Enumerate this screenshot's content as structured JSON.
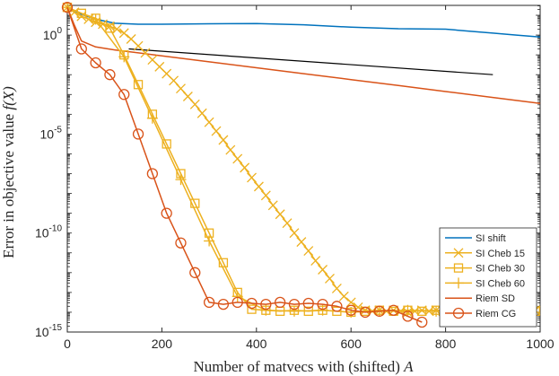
{
  "chart_data": {
    "type": "line",
    "title": "",
    "xlabel": "Number of matvecs with (shifted) A",
    "xlabel_parts": {
      "text": "Number of matvecs with (shifted) ",
      "math": "A"
    },
    "ylabel": "Error in objective value f(X)",
    "ylabel_parts": {
      "text": "Error in objective value ",
      "math": "f(X)"
    },
    "xlim": [
      0,
      1000
    ],
    "ylim_log10": [
      -15,
      1.5
    ],
    "yscale": "log",
    "x_ticks": [
      0,
      200,
      400,
      600,
      800,
      1000
    ],
    "x_tick_labels": [
      "0",
      "200",
      "400",
      "600",
      "800",
      "1000"
    ],
    "y_ticks_log10": [
      0,
      -5,
      -10,
      -15
    ],
    "y_tick_labels": [
      {
        "base": "10",
        "exp": "0"
      },
      {
        "base": "10",
        "exp": "-5"
      },
      {
        "base": "10",
        "exp": "-10"
      },
      {
        "base": "10",
        "exp": "-15"
      }
    ],
    "legend_position": "bottom-right",
    "series": [
      {
        "name": "SI shift",
        "color": "#0072BD",
        "marker": "none",
        "x": [
          0,
          30,
          60,
          100,
          150,
          200,
          300,
          400,
          500,
          600,
          700,
          800,
          850,
          900,
          950,
          1000
        ],
        "log10_y": [
          1.4,
          1.05,
          0.8,
          0.6,
          0.55,
          0.55,
          0.57,
          0.58,
          0.52,
          0.4,
          0.32,
          0.3,
          0.2,
          0.1,
          0.0,
          -0.1
        ]
      },
      {
        "name": "SI Cheb 15",
        "color": "#EDB120",
        "marker": "x",
        "x": [
          0,
          15,
          30,
          45,
          60,
          75,
          90,
          105,
          120,
          135,
          150,
          165,
          180,
          195,
          210,
          225,
          240,
          255,
          270,
          285,
          300,
          315,
          330,
          345,
          360,
          375,
          390,
          405,
          420,
          435,
          450,
          465,
          480,
          495,
          510,
          525,
          540,
          555,
          570,
          585,
          600,
          615,
          630,
          645,
          660,
          675,
          690,
          705,
          720,
          735,
          750,
          765,
          780,
          795,
          810,
          825,
          840,
          855,
          870,
          885,
          900,
          915,
          930,
          945,
          960,
          975,
          990
        ],
        "log10_y": [
          1.4,
          1.15,
          0.95,
          0.8,
          0.65,
          0.55,
          0.45,
          0.3,
          0.1,
          -0.2,
          -0.55,
          -0.9,
          -1.25,
          -1.6,
          -1.95,
          -2.3,
          -2.7,
          -3.1,
          -3.5,
          -3.95,
          -4.4,
          -4.85,
          -5.3,
          -5.8,
          -6.25,
          -6.7,
          -7.2,
          -7.65,
          -8.1,
          -8.6,
          -9.05,
          -9.5,
          -10.0,
          -10.45,
          -10.9,
          -11.4,
          -11.85,
          -12.3,
          -12.8,
          -13.2,
          -13.5,
          -13.75,
          -13.9,
          -13.95,
          -13.9,
          -13.95,
          -13.9,
          -13.95,
          -14.0,
          -13.95,
          -13.9,
          -13.95,
          -13.9,
          -13.95,
          -13.9,
          -13.95,
          -13.9,
          -13.95,
          -13.9,
          -13.95,
          -13.9,
          -13.95,
          -13.9,
          -13.95,
          -13.9,
          -13.95,
          -13.9
        ]
      },
      {
        "name": "SI Cheb 30",
        "color": "#EDB120",
        "marker": "square",
        "x": [
          0,
          30,
          60,
          90,
          120,
          150,
          180,
          210,
          240,
          270,
          300,
          330,
          360,
          390,
          420,
          450,
          480,
          510,
          540,
          570,
          600,
          630,
          660,
          690,
          720,
          750,
          780,
          810,
          840,
          870,
          900,
          930,
          960,
          990
        ],
        "log10_y": [
          1.4,
          1.1,
          0.85,
          0.35,
          -1.0,
          -2.5,
          -4.0,
          -5.5,
          -7.0,
          -8.5,
          -10.0,
          -11.5,
          -13.0,
          -13.85,
          -13.9,
          -13.95,
          -13.9,
          -13.95,
          -13.9,
          -13.95,
          -14.0,
          -13.95,
          -13.9,
          -13.95,
          -13.9,
          -13.95,
          -13.9,
          -13.95,
          -13.9,
          -13.95,
          -13.9,
          -13.95,
          -13.9,
          -13.95
        ]
      },
      {
        "name": "SI Cheb 60",
        "color": "#EDB120",
        "marker": "plus",
        "x": [
          0,
          60,
          120,
          180,
          240,
          300,
          360,
          420,
          480,
          540,
          600,
          660,
          720,
          780,
          840,
          900,
          960
        ],
        "log10_y": [
          1.4,
          0.8,
          -1.1,
          -4.2,
          -7.3,
          -10.4,
          -13.2,
          -13.9,
          -13.95,
          -13.9,
          -14.0,
          -13.95,
          -13.9,
          -13.95,
          -13.9,
          -13.95,
          -13.9
        ]
      },
      {
        "name": "Riem SD",
        "color": "#D95319",
        "marker": "none",
        "x": [
          0,
          15,
          30,
          60,
          100,
          150,
          200,
          300,
          400,
          500,
          600,
          700,
          800,
          900,
          1000
        ],
        "log10_y": [
          1.4,
          0.5,
          -0.3,
          -0.6,
          -0.75,
          -0.9,
          -1.05,
          -1.35,
          -1.65,
          -1.95,
          -2.25,
          -2.55,
          -2.85,
          -3.15,
          -3.45
        ]
      },
      {
        "name": "Riem CG",
        "color": "#D95319",
        "marker": "circle",
        "x": [
          0,
          30,
          60,
          90,
          120,
          150,
          180,
          210,
          240,
          270,
          300,
          330,
          360,
          390,
          420,
          450,
          480,
          510,
          540,
          570,
          600,
          630,
          660,
          690,
          720,
          750
        ],
        "log10_y": [
          1.4,
          -0.7,
          -1.4,
          -2.0,
          -3.0,
          -5.0,
          -7.0,
          -9.0,
          -10.5,
          -12.0,
          -13.5,
          -13.6,
          -13.5,
          -13.55,
          -13.6,
          -13.5,
          -13.6,
          -13.55,
          -13.6,
          -13.7,
          -13.9,
          -14.0,
          -13.95,
          -13.9,
          -14.2,
          -14.5
        ]
      }
    ],
    "reference_line": {
      "name": "slope reference",
      "color": "#000000",
      "x": [
        130,
        900
      ],
      "log10_y": [
        -0.7,
        -2.0
      ]
    }
  }
}
